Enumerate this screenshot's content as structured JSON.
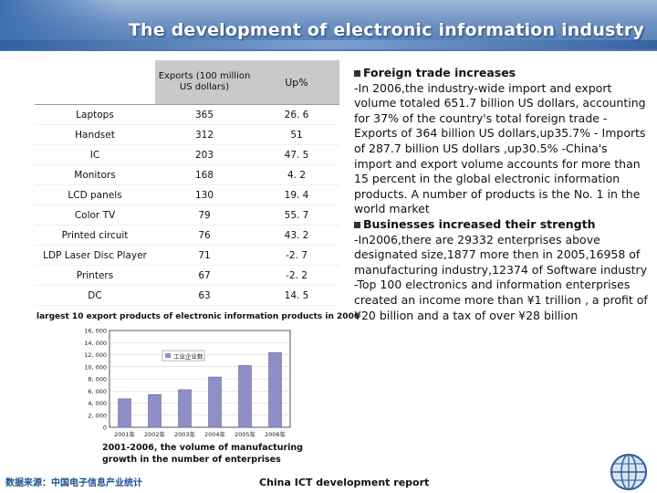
{
  "header": {
    "title": "The development of electronic information industry"
  },
  "table": {
    "headers": {
      "product": "",
      "exports": "Exports (100 million US dollars)",
      "up": "Up%"
    },
    "rows": [
      {
        "name": "Laptops",
        "exports": "365",
        "up": "26. 6"
      },
      {
        "name": "Handset",
        "exports": "312",
        "up": "51"
      },
      {
        "name": "IC",
        "exports": "203",
        "up": "47. 5"
      },
      {
        "name": "Monitors",
        "exports": "168",
        "up": "4. 2"
      },
      {
        "name": "LCD panels",
        "exports": "130",
        "up": "19. 4"
      },
      {
        "name": "Color TV",
        "exports": "79",
        "up": "55. 7"
      },
      {
        "name": "Printed circuit",
        "exports": "76",
        "up": "43. 2"
      },
      {
        "name": "LDP Laser Disc Player",
        "exports": "71",
        "up": "-2. 7"
      },
      {
        "name": "Printers",
        "exports": "67",
        "up": "-2. 2"
      },
      {
        "name": "DC",
        "exports": "63",
        "up": "14. 5"
      }
    ],
    "caption": "largest 10 export products of electronic information products in 2006"
  },
  "chart_data": {
    "type": "bar",
    "categories": [
      "2001年",
      "2002年",
      "2003年",
      "2004年",
      "2005年",
      "2006年"
    ],
    "values": [
      4700,
      5400,
      6200,
      8300,
      10200,
      12350
    ],
    "y_ticks": [
      "16, 000",
      "14, 000",
      "12, 000",
      "10, 000",
      "8, 000",
      "6, 000",
      "4, 000",
      "2, 000",
      "0"
    ],
    "ylim": [
      0,
      16000
    ],
    "legend": "工业企业数",
    "caption_line1": "2001-2006, the volume of manufacturing",
    "caption_line2": "growth in the number of enterprises",
    "bar_color": "#8f8fc8"
  },
  "right": {
    "heading1": "Foreign trade increases",
    "paragraph1": "-In 2006,the industry-wide import and export volume totaled 651.7 billion US dollars, accounting for 37% of the country's total foreign trade -Exports of 364 billion US dollars,up35.7% - Imports of 287.7 billion US dollars ,up30.5% -China's import and export volume accounts for more than 15 percent in the global electronic information products. A number of products is the No. 1 in the world market",
    "heading2": "Businesses increased their strength",
    "paragraph2": "-In2006,there are 29332 enterprises above designated size,1877 more then in 2005,16958 of manufacturing industry,12374 of Software industry -Top 100 electronics and information enterprises created an income more than ¥1 trillion , a profit of ¥20 billion and a tax of over ¥28 billion"
  },
  "footer": {
    "left": "数据来源：中国电子信息产业统计",
    "center": "China ICT development report"
  }
}
